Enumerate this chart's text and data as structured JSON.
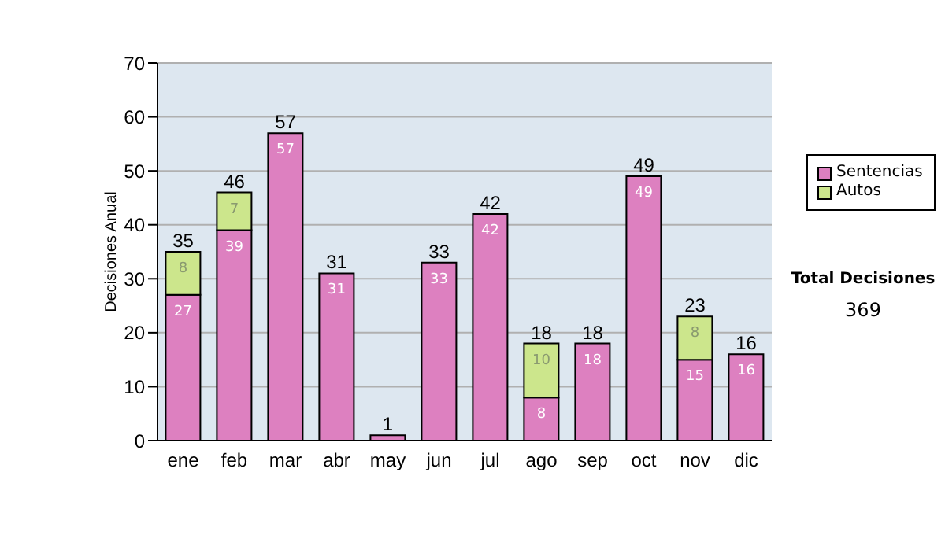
{
  "chart_data": {
    "type": "bar",
    "stacked": true,
    "ylabel": "Decisiones Anual",
    "categories": [
      "ene",
      "feb",
      "mar",
      "abr",
      "may",
      "jun",
      "jul",
      "ago",
      "sep",
      "oct",
      "nov",
      "dic"
    ],
    "series": [
      {
        "name": "Sentencias",
        "color": "#dd80c0",
        "values": [
          27,
          39,
          57,
          31,
          1,
          33,
          42,
          8,
          18,
          49,
          15,
          16
        ],
        "value_labels": [
          "27",
          "39",
          "57",
          "31",
          null,
          "33",
          "42",
          "8",
          "18",
          "49",
          "15",
          "16"
        ]
      },
      {
        "name": "Autos",
        "color": "#cce68c",
        "values": [
          8,
          7,
          null,
          null,
          null,
          null,
          null,
          10,
          null,
          null,
          8,
          null
        ],
        "value_labels": [
          "8",
          "7",
          null,
          null,
          null,
          null,
          null,
          "10",
          null,
          null,
          "8",
          null
        ]
      }
    ],
    "totals": [
      "35",
      "46",
      "57",
      "31",
      "1",
      "33",
      "42",
      "18",
      "18",
      "49",
      "23",
      "16"
    ],
    "ylim": [
      0,
      70
    ],
    "yticks": [
      0,
      10,
      20,
      30,
      40,
      50,
      60,
      70
    ],
    "grid": "y",
    "legend": "right",
    "annotations": [
      "Total Decisiones",
      "369"
    ]
  }
}
